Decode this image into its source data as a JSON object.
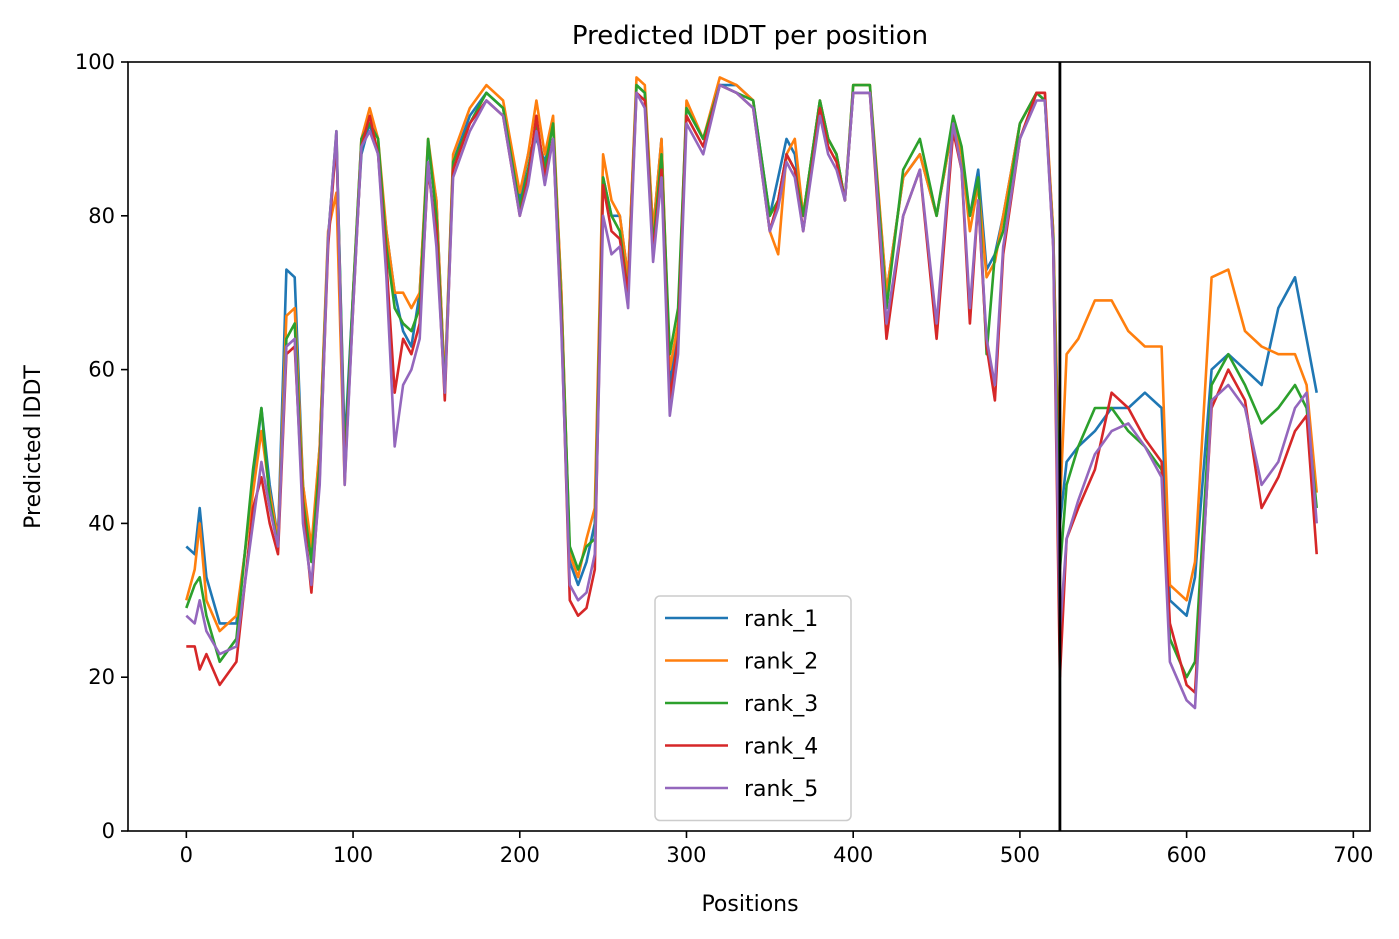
{
  "chart_data": {
    "type": "line",
    "title": "Predicted lDDT per position",
    "xlabel": "Positions",
    "ylabel": "Predicted lDDT",
    "xlim": [
      -35,
      710
    ],
    "ylim": [
      0,
      100
    ],
    "xticks": [
      0,
      100,
      200,
      300,
      400,
      500,
      600,
      700
    ],
    "yticks": [
      0,
      20,
      40,
      60,
      80,
      100
    ],
    "grid": false,
    "legend": "lower center",
    "vline": {
      "x": 524,
      "color": "#000000"
    },
    "series": [
      {
        "name": "rank_1",
        "color": "#1f77b4",
        "x": [
          0,
          5,
          8,
          12,
          20,
          30,
          40,
          45,
          50,
          55,
          60,
          65,
          70,
          75,
          80,
          85,
          90,
          95,
          100,
          105,
          110,
          115,
          120,
          125,
          130,
          135,
          140,
          145,
          150,
          155,
          160,
          170,
          180,
          190,
          200,
          205,
          210,
          215,
          220,
          225,
          230,
          235,
          240,
          245,
          250,
          255,
          260,
          265,
          270,
          275,
          280,
          285,
          290,
          295,
          300,
          310,
          320,
          330,
          340,
          350,
          355,
          360,
          365,
          370,
          380,
          385,
          390,
          395,
          400,
          410,
          420,
          430,
          440,
          450,
          460,
          465,
          470,
          475,
          480,
          485,
          490,
          500,
          510,
          515,
          520,
          524,
          528,
          535,
          545,
          555,
          565,
          575,
          585,
          590,
          600,
          605,
          615,
          625,
          635,
          645,
          655,
          665,
          672,
          678
        ],
        "y": [
          37,
          36,
          42,
          33,
          27,
          27,
          45,
          55,
          45,
          38,
          73,
          72,
          45,
          36,
          50,
          77,
          90,
          50,
          70,
          88,
          92,
          88,
          78,
          70,
          65,
          63,
          70,
          89,
          82,
          58,
          87,
          93,
          96,
          94,
          82,
          88,
          90,
          87,
          92,
          70,
          35,
          32,
          35,
          40,
          85,
          80,
          80,
          72,
          97,
          96,
          78,
          90,
          58,
          65,
          94,
          90,
          97,
          97,
          95,
          80,
          85,
          90,
          88,
          80,
          95,
          90,
          88,
          82,
          96,
          96,
          70,
          85,
          88,
          80,
          92,
          88,
          80,
          86,
          73,
          75,
          80,
          92,
          96,
          95,
          78,
          40,
          48,
          50,
          52,
          55,
          55,
          57,
          55,
          30,
          28,
          33,
          60,
          62,
          60,
          58,
          68,
          72,
          64,
          57
        ]
      },
      {
        "name": "rank_2",
        "color": "#ff7f0e",
        "x": [
          0,
          5,
          8,
          12,
          20,
          30,
          40,
          45,
          50,
          55,
          60,
          65,
          70,
          75,
          80,
          85,
          90,
          95,
          100,
          105,
          110,
          115,
          120,
          125,
          130,
          135,
          140,
          145,
          150,
          155,
          160,
          170,
          180,
          190,
          200,
          205,
          210,
          215,
          220,
          225,
          230,
          235,
          240,
          245,
          250,
          255,
          260,
          265,
          270,
          275,
          280,
          285,
          290,
          295,
          300,
          310,
          320,
          330,
          340,
          350,
          355,
          360,
          365,
          370,
          380,
          385,
          390,
          395,
          400,
          410,
          420,
          430,
          440,
          450,
          460,
          465,
          470,
          475,
          480,
          485,
          490,
          500,
          510,
          515,
          520,
          524,
          528,
          535,
          545,
          555,
          565,
          575,
          585,
          590,
          600,
          605,
          615,
          625,
          635,
          645,
          655,
          665,
          672,
          678
        ],
        "y": [
          30,
          34,
          40,
          30,
          26,
          28,
          44,
          52,
          44,
          38,
          67,
          68,
          45,
          37,
          50,
          78,
          83,
          45,
          70,
          90,
          94,
          90,
          78,
          70,
          70,
          68,
          70,
          90,
          82,
          58,
          88,
          94,
          97,
          95,
          83,
          88,
          95,
          88,
          93,
          70,
          36,
          33,
          38,
          42,
          88,
          82,
          80,
          72,
          98,
          97,
          78,
          90,
          60,
          66,
          95,
          90,
          98,
          97,
          95,
          78,
          75,
          88,
          90,
          80,
          95,
          90,
          88,
          82,
          97,
          97,
          70,
          85,
          88,
          80,
          92,
          88,
          78,
          84,
          72,
          74,
          80,
          92,
          96,
          96,
          78,
          42,
          62,
          64,
          69,
          69,
          65,
          63,
          63,
          32,
          30,
          35,
          72,
          73,
          65,
          63,
          62,
          62,
          58,
          44
        ]
      },
      {
        "name": "rank_3",
        "color": "#2ca02c",
        "x": [
          0,
          5,
          8,
          12,
          20,
          30,
          40,
          45,
          50,
          55,
          60,
          65,
          70,
          75,
          80,
          85,
          90,
          95,
          100,
          105,
          110,
          115,
          120,
          125,
          130,
          135,
          140,
          145,
          150,
          155,
          160,
          170,
          180,
          190,
          200,
          205,
          210,
          215,
          220,
          225,
          230,
          235,
          240,
          245,
          250,
          255,
          260,
          265,
          270,
          275,
          280,
          285,
          290,
          295,
          300,
          310,
          320,
          330,
          340,
          350,
          355,
          360,
          365,
          370,
          380,
          385,
          390,
          395,
          400,
          410,
          420,
          430,
          440,
          450,
          460,
          465,
          470,
          475,
          480,
          485,
          490,
          500,
          510,
          515,
          520,
          524,
          528,
          535,
          545,
          555,
          565,
          575,
          585,
          590,
          600,
          605,
          615,
          625,
          635,
          645,
          655,
          665,
          672,
          678
        ],
        "y": [
          29,
          32,
          33,
          28,
          22,
          25,
          47,
          55,
          43,
          37,
          64,
          66,
          43,
          35,
          48,
          77,
          91,
          48,
          70,
          90,
          92,
          90,
          76,
          68,
          66,
          65,
          68,
          90,
          80,
          57,
          87,
          92,
          96,
          94,
          81,
          86,
          92,
          86,
          92,
          68,
          37,
          34,
          37,
          38,
          85,
          80,
          78,
          70,
          97,
          96,
          76,
          88,
          62,
          68,
          94,
          90,
          97,
          96,
          95,
          80,
          82,
          88,
          86,
          80,
          95,
          90,
          88,
          82,
          97,
          97,
          68,
          86,
          90,
          80,
          93,
          89,
          80,
          85,
          62,
          75,
          78,
          92,
          96,
          95,
          77,
          34,
          45,
          50,
          55,
          55,
          52,
          50,
          47,
          25,
          20,
          22,
          58,
          62,
          58,
          53,
          55,
          58,
          55,
          42
        ]
      },
      {
        "name": "rank_4",
        "color": "#d62728",
        "x": [
          0,
          5,
          8,
          12,
          20,
          30,
          40,
          45,
          50,
          55,
          60,
          65,
          70,
          75,
          80,
          85,
          90,
          95,
          100,
          105,
          110,
          115,
          120,
          125,
          130,
          135,
          140,
          145,
          150,
          155,
          160,
          170,
          180,
          190,
          200,
          205,
          210,
          215,
          220,
          225,
          230,
          235,
          240,
          245,
          250,
          255,
          260,
          265,
          270,
          275,
          280,
          285,
          290,
          295,
          300,
          310,
          320,
          330,
          340,
          350,
          355,
          360,
          365,
          370,
          380,
          385,
          390,
          395,
          400,
          410,
          420,
          430,
          440,
          450,
          460,
          465,
          470,
          475,
          480,
          485,
          490,
          500,
          510,
          515,
          520,
          524,
          528,
          535,
          545,
          555,
          565,
          575,
          585,
          590,
          600,
          605,
          615,
          625,
          635,
          645,
          655,
          665,
          672,
          678
        ],
        "y": [
          24,
          24,
          21,
          23,
          19,
          22,
          42,
          46,
          40,
          36,
          62,
          63,
          42,
          31,
          46,
          76,
          90,
          46,
          68,
          89,
          93,
          88,
          74,
          57,
          64,
          62,
          66,
          86,
          78,
          56,
          86,
          92,
          95,
          93,
          80,
          85,
          93,
          85,
          90,
          66,
          30,
          28,
          29,
          34,
          84,
          78,
          77,
          70,
          96,
          95,
          75,
          86,
          56,
          64,
          93,
          89,
          97,
          96,
          94,
          78,
          82,
          88,
          86,
          78,
          94,
          89,
          87,
          82,
          96,
          96,
          64,
          80,
          86,
          64,
          91,
          86,
          66,
          82,
          63,
          56,
          75,
          90,
          96,
          96,
          76,
          20,
          38,
          42,
          47,
          57,
          55,
          51,
          48,
          27,
          19,
          18,
          55,
          60,
          56,
          42,
          46,
          52,
          54,
          36
        ]
      },
      {
        "name": "rank_5",
        "color": "#9467bd",
        "x": [
          0,
          5,
          8,
          12,
          20,
          30,
          40,
          45,
          50,
          55,
          60,
          65,
          70,
          75,
          80,
          85,
          90,
          95,
          100,
          105,
          110,
          115,
          120,
          125,
          130,
          135,
          140,
          145,
          150,
          155,
          160,
          170,
          180,
          190,
          200,
          205,
          210,
          215,
          220,
          225,
          230,
          235,
          240,
          245,
          250,
          255,
          260,
          265,
          270,
          275,
          280,
          285,
          290,
          295,
          300,
          310,
          320,
          330,
          340,
          350,
          355,
          360,
          365,
          370,
          380,
          385,
          390,
          395,
          400,
          410,
          420,
          430,
          440,
          450,
          460,
          465,
          470,
          475,
          480,
          485,
          490,
          500,
          510,
          515,
          520,
          524,
          528,
          535,
          545,
          555,
          565,
          575,
          585,
          590,
          600,
          605,
          615,
          625,
          635,
          645,
          655,
          665,
          672,
          678
        ],
        "y": [
          28,
          27,
          30,
          26,
          23,
          24,
          40,
          48,
          42,
          37,
          63,
          64,
          40,
          32,
          45,
          77,
          91,
          45,
          68,
          89,
          91,
          88,
          72,
          50,
          58,
          60,
          64,
          87,
          76,
          57,
          85,
          91,
          95,
          93,
          80,
          84,
          91,
          84,
          90,
          65,
          32,
          30,
          31,
          36,
          80,
          75,
          76,
          68,
          96,
          94,
          74,
          85,
          54,
          62,
          92,
          88,
          97,
          96,
          94,
          78,
          81,
          87,
          85,
          78,
          93,
          88,
          86,
          82,
          96,
          96,
          66,
          80,
          86,
          66,
          92,
          86,
          68,
          82,
          64,
          58,
          76,
          90,
          95,
          95,
          76,
          26,
          38,
          43,
          49,
          52,
          53,
          50,
          46,
          22,
          17,
          16,
          56,
          58,
          55,
          45,
          48,
          55,
          57,
          40
        ]
      }
    ]
  }
}
